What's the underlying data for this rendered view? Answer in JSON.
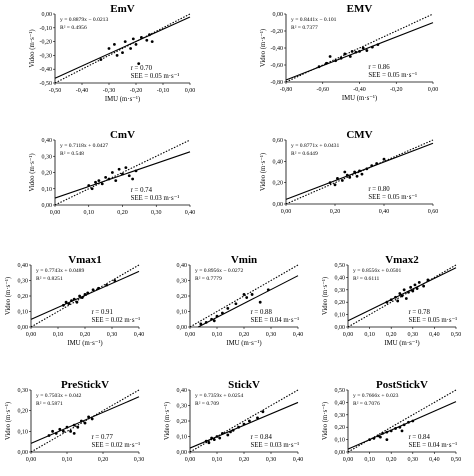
{
  "figure": {
    "colors": {
      "points": "#000000",
      "fit_line": "#000000",
      "identity_line": "#000000",
      "axes": "#000000"
    }
  },
  "chart_data": [
    {
      "id": "EmV",
      "type": "scatter",
      "title": "EmV",
      "xlabel": "IMU (m·s⁻¹)",
      "ylabel": "Video (m·s⁻¹)",
      "xlim": [
        -0.5,
        0
      ],
      "ylim": [
        -0.5,
        0
      ],
      "xticks": [
        "-0,50",
        "-0,40",
        "-0,30",
        "-0,20",
        "-0,10",
        "0,00"
      ],
      "yticks": [
        "-0,50",
        "-0,40",
        "-0,30",
        "-0,20",
        "-0,10",
        "0,00"
      ],
      "equation": "y = 0.8879x − 0.0213",
      "r2_label": "R² = 0.4956",
      "r_label": "r = 0.70",
      "see_label": "SEE = 0.05 m·s⁻¹",
      "fit": {
        "slope": 0.8879,
        "intercept": -0.0213
      },
      "points": [
        [
          -0.3,
          -0.25
        ],
        [
          -0.28,
          -0.22
        ],
        [
          -0.27,
          -0.3
        ],
        [
          -0.25,
          -0.28
        ],
        [
          -0.24,
          -0.2
        ],
        [
          -0.22,
          -0.25
        ],
        [
          -0.21,
          -0.18
        ],
        [
          -0.2,
          -0.22
        ],
        [
          -0.19,
          -0.36
        ],
        [
          -0.18,
          -0.17
        ],
        [
          -0.16,
          -0.19
        ],
        [
          -0.15,
          -0.15
        ],
        [
          -0.14,
          -0.2
        ],
        [
          -0.33,
          -0.33
        ]
      ]
    },
    {
      "id": "EMV",
      "type": "scatter",
      "title": "EMV",
      "xlabel": "IMU (m·s⁻¹)",
      "ylabel": "Video (m·s⁻¹)",
      "xlim": [
        -0.8,
        0
      ],
      "ylim": [
        -0.8,
        0
      ],
      "xticks": [
        "-0,80",
        "-0,60",
        "-0,40",
        "-0,20",
        "0,00"
      ],
      "yticks": [
        "-0,80",
        "-0,60",
        "-0,40",
        "-0,20",
        "0,00"
      ],
      "equation": "y = 0.8441x − 0.101",
      "r2_label": "R² = 0.7377",
      "r_label": "r = 0.86",
      "see_label": "SEE = 0.05 m·s⁻¹",
      "fit": {
        "slope": 0.8441,
        "intercept": -0.101
      },
      "points": [
        [
          -0.62,
          -0.62
        ],
        [
          -0.58,
          -0.58
        ],
        [
          -0.56,
          -0.5
        ],
        [
          -0.53,
          -0.55
        ],
        [
          -0.5,
          -0.52
        ],
        [
          -0.48,
          -0.47
        ],
        [
          -0.45,
          -0.5
        ],
        [
          -0.44,
          -0.44
        ],
        [
          -0.42,
          -0.45
        ],
        [
          -0.4,
          -0.44
        ],
        [
          -0.38,
          -0.4
        ],
        [
          -0.36,
          -0.43
        ],
        [
          -0.33,
          -0.39
        ],
        [
          -0.3,
          -0.36
        ]
      ]
    },
    {
      "id": "CmV",
      "type": "scatter",
      "title": "CmV",
      "xlabel": "",
      "ylabel": "Video (m·s⁻¹)",
      "xlim": [
        0,
        0.4
      ],
      "ylim": [
        0,
        0.4
      ],
      "xticks": [
        "0,00",
        "0,10",
        "0,20",
        "0,30",
        "0,40"
      ],
      "yticks": [
        "0,00",
        "0,10",
        "0,20",
        "0,30",
        "0,40"
      ],
      "equation": "y = 0.7118x + 0.0427",
      "r2_label": "R² = 0.548",
      "r_label": "r = 0.74",
      "see_label": "SEE = 0.03 m·s⁻¹",
      "fit": {
        "slope": 0.7118,
        "intercept": 0.0427
      },
      "points": [
        [
          0.1,
          0.12
        ],
        [
          0.11,
          0.1
        ],
        [
          0.12,
          0.14
        ],
        [
          0.13,
          0.15
        ],
        [
          0.14,
          0.13
        ],
        [
          0.15,
          0.17
        ],
        [
          0.16,
          0.16
        ],
        [
          0.17,
          0.2
        ],
        [
          0.18,
          0.15
        ],
        [
          0.19,
          0.22
        ],
        [
          0.2,
          0.19
        ],
        [
          0.21,
          0.23
        ],
        [
          0.22,
          0.18
        ],
        [
          0.23,
          0.16
        ],
        [
          0.24,
          0.21
        ]
      ]
    },
    {
      "id": "CMV",
      "type": "scatter",
      "title": "CMV",
      "xlabel": "",
      "ylabel": "Video (m·s⁻¹)",
      "xlim": [
        0,
        0.6
      ],
      "ylim": [
        0,
        0.6
      ],
      "xticks": [
        "0,00",
        "0,20",
        "0,40",
        "0,60"
      ],
      "yticks": [
        "0,00",
        "0,20",
        "0,40",
        "0,60"
      ],
      "equation": "y = 0.8771x + 0.0431",
      "r2_label": "R² = 0.6449",
      "r_label": "r = 0.80",
      "see_label": "SEE = 0.05 m·s⁻¹",
      "fit": {
        "slope": 0.8771,
        "intercept": 0.0431
      },
      "points": [
        [
          0.18,
          0.2
        ],
        [
          0.2,
          0.18
        ],
        [
          0.21,
          0.24
        ],
        [
          0.23,
          0.22
        ],
        [
          0.25,
          0.27
        ],
        [
          0.26,
          0.25
        ],
        [
          0.28,
          0.3
        ],
        [
          0.29,
          0.26
        ],
        [
          0.3,
          0.31
        ],
        [
          0.31,
          0.28
        ],
        [
          0.33,
          0.33
        ],
        [
          0.35,
          0.36
        ],
        [
          0.37,
          0.38
        ],
        [
          0.4,
          0.42
        ],
        [
          0.24,
          0.3
        ]
      ]
    },
    {
      "id": "Vmax1",
      "type": "scatter",
      "title": "Vmax1",
      "xlabel": "IMU (m·s⁻¹)",
      "ylabel": "Video (m·s⁻¹)",
      "xlim": [
        0,
        0.4
      ],
      "ylim": [
        0,
        0.4
      ],
      "xticks": [
        "0,00",
        "0,10",
        "0,20",
        "0,30",
        "0,40"
      ],
      "yticks": [
        "0,00",
        "0,10",
        "0,20",
        "0,30",
        "0,40"
      ],
      "equation": "y = 0.7743x + 0.0489",
      "r2_label": "R² = 0.8251",
      "r_label": "r = 0.91",
      "see_label": "SEE = 0.02 m·s⁻¹",
      "fit": {
        "slope": 0.7743,
        "intercept": 0.0489
      },
      "points": [
        [
          0.12,
          0.14
        ],
        [
          0.13,
          0.16
        ],
        [
          0.14,
          0.15
        ],
        [
          0.15,
          0.17
        ],
        [
          0.16,
          0.18
        ],
        [
          0.17,
          0.16
        ],
        [
          0.18,
          0.2
        ],
        [
          0.19,
          0.19
        ],
        [
          0.2,
          0.21
        ],
        [
          0.21,
          0.22
        ],
        [
          0.23,
          0.24
        ],
        [
          0.25,
          0.25
        ],
        [
          0.28,
          0.27
        ],
        [
          0.31,
          0.3
        ]
      ]
    },
    {
      "id": "Vmin",
      "type": "scatter",
      "title": "Vmin",
      "xlabel": "IMU (m·s⁻¹)",
      "ylabel": "",
      "xlim": [
        0,
        0.4
      ],
      "ylim": [
        0,
        0.4
      ],
      "xticks": [
        "0,00",
        "0,10",
        "0,20",
        "0,30",
        "0,40"
      ],
      "yticks": [
        "0,00",
        "0,10",
        "0,20",
        "0,30",
        "0,40"
      ],
      "equation": "y = 0.8956x − 0.0272",
      "r2_label": "R² = 0.7779",
      "r_label": "r = 0.88",
      "see_label": "SEE = 0.04 m·s⁻¹",
      "fit": {
        "slope": 0.8956,
        "intercept": -0.0272
      },
      "points": [
        [
          0.04,
          0.02
        ],
        [
          0.06,
          0.03
        ],
        [
          0.08,
          0.05
        ],
        [
          0.09,
          0.04
        ],
        [
          0.1,
          0.07
        ],
        [
          0.12,
          0.09
        ],
        [
          0.14,
          0.12
        ],
        [
          0.17,
          0.15
        ],
        [
          0.2,
          0.21
        ],
        [
          0.21,
          0.19
        ],
        [
          0.23,
          0.21
        ],
        [
          0.26,
          0.16
        ],
        [
          0.29,
          0.24
        ]
      ]
    },
    {
      "id": "Vmax2",
      "type": "scatter",
      "title": "Vmax2",
      "xlabel": "IMU (m·s⁻¹)",
      "ylabel": "Video (m·s⁻¹)",
      "xlim": [
        0,
        0.5
      ],
      "ylim": [
        0,
        0.5
      ],
      "xticks": [
        "0,00",
        "0,10",
        "0,20",
        "0,30",
        "0,40",
        "0,50"
      ],
      "yticks": [
        "0,00",
        "0,10",
        "0,20",
        "0,30",
        "0,40",
        "0,50"
      ],
      "equation": "y = 0.8556x + 0.0501",
      "r2_label": "R² = 0.6111",
      "r_label": "r = 0.78",
      "see_label": "SEE = 0.05 m·s⁻¹",
      "fit": {
        "slope": 0.8556,
        "intercept": 0.0501
      },
      "points": [
        [
          0.18,
          0.2
        ],
        [
          0.2,
          0.22
        ],
        [
          0.22,
          0.24
        ],
        [
          0.23,
          0.21
        ],
        [
          0.24,
          0.27
        ],
        [
          0.25,
          0.25
        ],
        [
          0.26,
          0.3
        ],
        [
          0.27,
          0.23
        ],
        [
          0.28,
          0.28
        ],
        [
          0.29,
          0.32
        ],
        [
          0.3,
          0.29
        ],
        [
          0.31,
          0.34
        ],
        [
          0.32,
          0.31
        ],
        [
          0.33,
          0.36
        ],
        [
          0.35,
          0.33
        ],
        [
          0.37,
          0.38
        ]
      ]
    },
    {
      "id": "PreStickV",
      "type": "scatter",
      "title": "PreStickV",
      "xlabel": "",
      "ylabel": "Video (m·s⁻¹)",
      "xlim": [
        0,
        0.3
      ],
      "ylim": [
        0,
        0.3
      ],
      "xticks": [
        "0,00",
        "0,10",
        "0,20",
        "0,30"
      ],
      "yticks": [
        "0,00",
        "0,10",
        "0,20",
        "0,30"
      ],
      "equation": "y = 0.7503x + 0.042",
      "r2_label": "R² = 0.5871",
      "r_label": "r = 0.77",
      "see_label": "SEE = 0.02 m·s⁻¹",
      "fit": {
        "slope": 0.7503,
        "intercept": 0.042
      },
      "points": [
        [
          0.05,
          0.08
        ],
        [
          0.06,
          0.1
        ],
        [
          0.07,
          0.09
        ],
        [
          0.08,
          0.11
        ],
        [
          0.09,
          0.1
        ],
        [
          0.1,
          0.12
        ],
        [
          0.11,
          0.1
        ],
        [
          0.12,
          0.13
        ],
        [
          0.13,
          0.12
        ],
        [
          0.14,
          0.15
        ],
        [
          0.15,
          0.14
        ],
        [
          0.16,
          0.17
        ],
        [
          0.17,
          0.16
        ],
        [
          0.12,
          0.09
        ]
      ]
    },
    {
      "id": "StickV",
      "type": "scatter",
      "title": "StickV",
      "xlabel": "",
      "ylabel": "Video (m·s⁻¹)",
      "xlim": [
        0,
        0.4
      ],
      "ylim": [
        0,
        0.4
      ],
      "xticks": [
        "0,00",
        "0,10",
        "0,20",
        "0,30",
        "0,40"
      ],
      "yticks": [
        "0,00",
        "0,10",
        "0,20",
        "0,30",
        "0,40"
      ],
      "equation": "y = 0.7359x + 0.0254",
      "r2_label": "R² = 0.709",
      "r_label": "r = 0.84",
      "see_label": "SEE = 0.03 m·s⁻¹",
      "fit": {
        "slope": 0.7359,
        "intercept": 0.0254
      },
      "points": [
        [
          0.06,
          0.07
        ],
        [
          0.07,
          0.06
        ],
        [
          0.08,
          0.09
        ],
        [
          0.09,
          0.08
        ],
        [
          0.1,
          0.1
        ],
        [
          0.11,
          0.09
        ],
        [
          0.12,
          0.12
        ],
        [
          0.14,
          0.11
        ],
        [
          0.15,
          0.13
        ],
        [
          0.16,
          0.14
        ],
        [
          0.18,
          0.16
        ],
        [
          0.2,
          0.18
        ],
        [
          0.22,
          0.2
        ],
        [
          0.25,
          0.22
        ],
        [
          0.27,
          0.26
        ]
      ]
    },
    {
      "id": "PostStickV",
      "type": "scatter",
      "title": "PostStickV",
      "xlabel": "",
      "ylabel": "Video (m·s⁻¹)",
      "xlim": [
        0,
        0.5
      ],
      "ylim": [
        0,
        0.5
      ],
      "xticks": [
        "0,00",
        "0,10",
        "0,20",
        "0,30",
        "0,40",
        "0,50"
      ],
      "yticks": [
        "0,00",
        "0,10",
        "0,20",
        "0,30",
        "0,40",
        "0,50"
      ],
      "equation": "y = 0.7666x + 0.023",
      "r2_label": "R² = 0.7076",
      "r_label": "r = 0.84",
      "see_label": "SEE = 0.04 m·s⁻¹",
      "fit": {
        "slope": 0.7666,
        "intercept": 0.023
      },
      "points": [
        [
          0.1,
          0.1
        ],
        [
          0.12,
          0.11
        ],
        [
          0.14,
          0.13
        ],
        [
          0.15,
          0.12
        ],
        [
          0.16,
          0.15
        ],
        [
          0.18,
          0.16
        ],
        [
          0.2,
          0.17
        ],
        [
          0.22,
          0.19
        ],
        [
          0.24,
          0.2
        ],
        [
          0.26,
          0.22
        ],
        [
          0.28,
          0.24
        ],
        [
          0.3,
          0.25
        ],
        [
          0.18,
          0.1
        ],
        [
          0.25,
          0.17
        ]
      ]
    }
  ]
}
